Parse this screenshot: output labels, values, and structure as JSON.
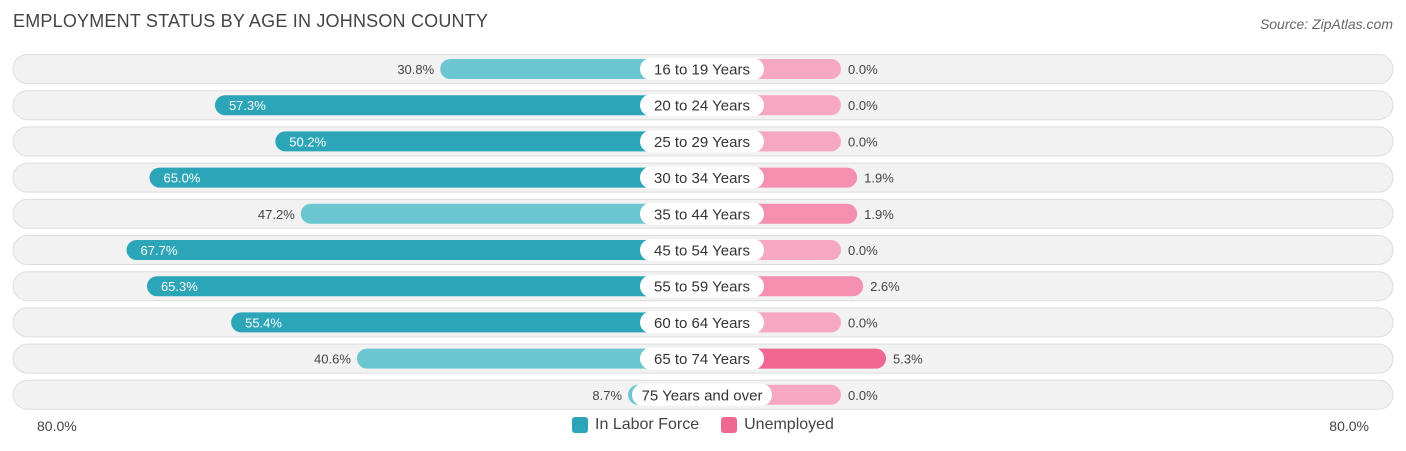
{
  "title": "EMPLOYMENT STATUS BY AGE IN JOHNSON COUNTY",
  "source": "Source: ZipAtlas.com",
  "colors": {
    "labor_force": "#2ca5b8",
    "labor_force_light": "#6cc6d1",
    "unemployed": "#f06792",
    "unemployed_light": "#f6a8c2"
  },
  "chart_data": {
    "type": "bar",
    "orientation": "horizontal-diverging",
    "title": "EMPLOYMENT STATUS BY AGE IN JOHNSON COUNTY",
    "categories": [
      "16 to 19 Years",
      "20 to 24 Years",
      "25 to 29 Years",
      "30 to 34 Years",
      "35 to 44 Years",
      "45 to 54 Years",
      "55 to 59 Years",
      "60 to 64 Years",
      "65 to 74 Years",
      "75 Years and over"
    ],
    "series": [
      {
        "name": "In Labor Force",
        "side": "left",
        "values": [
          30.8,
          57.3,
          50.2,
          65.0,
          47.2,
          67.7,
          65.3,
          55.4,
          40.6,
          8.7
        ],
        "labels": [
          "30.8%",
          "57.3%",
          "50.2%",
          "65.0%",
          "47.2%",
          "67.7%",
          "65.3%",
          "55.4%",
          "40.6%",
          "8.7%"
        ]
      },
      {
        "name": "Unemployed",
        "side": "right",
        "values": [
          0.0,
          0.0,
          0.0,
          1.9,
          1.9,
          0.0,
          2.6,
          0.0,
          5.3,
          0.0
        ],
        "labels": [
          "0.0%",
          "0.0%",
          "0.0%",
          "1.9%",
          "1.9%",
          "0.0%",
          "2.6%",
          "0.0%",
          "5.3%",
          "0.0%"
        ]
      }
    ],
    "axis_max": 80.0,
    "axis_left_label": "80.0%",
    "axis_right_label": "80.0%",
    "legend_position": "bottom-center"
  },
  "legend": {
    "labor_force": "In Labor Force",
    "unemployed": "Unemployed"
  }
}
